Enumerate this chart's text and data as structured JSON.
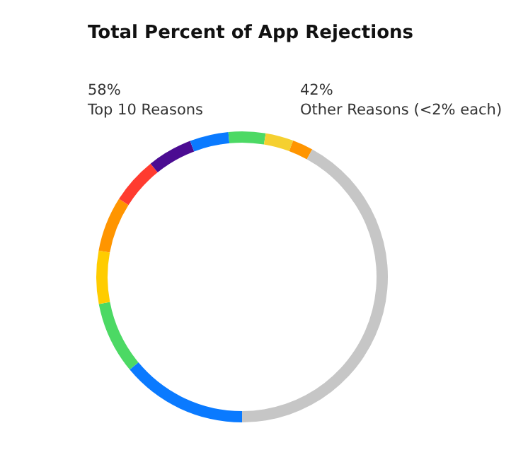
{
  "chart_data": {
    "type": "donut",
    "title": "Total Percent of App Rejections",
    "annotations": [
      "58%",
      "Top 10 Reasons",
      "42%",
      "Other Reasons (<2% each)"
    ],
    "categories": [
      null,
      null,
      null,
      null,
      null,
      null,
      null,
      null,
      null,
      null,
      null
    ],
    "values": [
      14.0,
      8.0,
      5.9,
      6.1,
      5.2,
      5.0,
      4.3,
      4.1,
      3.1,
      2.3,
      42
    ],
    "colors": [
      "#0a7aff",
      "#4cd964",
      "#ffcc00",
      "#ff9500",
      "#ff3b30",
      "#4b0c92",
      "#0a7aff",
      "#4cd964",
      "#f5d030",
      "#ff9500",
      "#c6c6c6"
    ]
  }
}
